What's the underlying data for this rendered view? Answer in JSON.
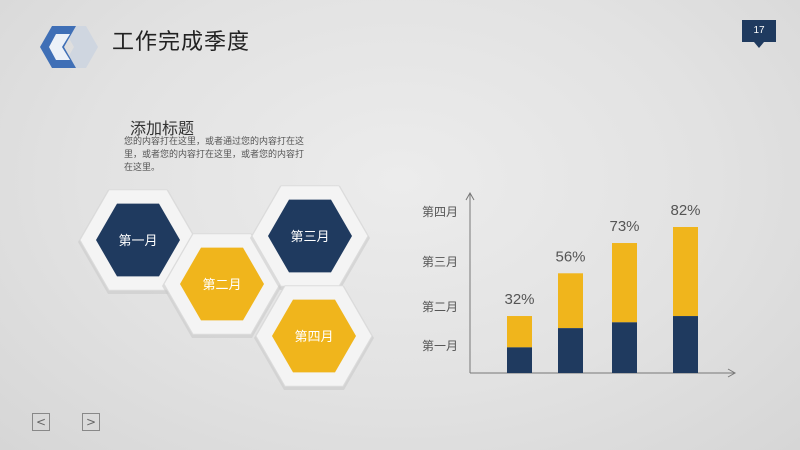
{
  "header": {
    "title": "工作完成季度",
    "page_number": "17"
  },
  "content": {
    "subtitle": "添加标题",
    "description": "您的内容打在这里，或者通过您的内容打在这里，或者您的内容打在这里，或者您的内容打在这里。"
  },
  "hexagons": [
    {
      "label": "第一月",
      "fill": "#1f3a5f"
    },
    {
      "label": "第二月",
      "fill": "#f0b51c"
    },
    {
      "label": "第三月",
      "fill": "#1f3a5f"
    },
    {
      "label": "第四月",
      "fill": "#f0b51c"
    }
  ],
  "chart_data": {
    "type": "bar",
    "y_category_labels": [
      "第一月",
      "第二月",
      "第三月",
      "第四月"
    ],
    "values": [
      32,
      56,
      73,
      82
    ],
    "data_labels": [
      "32%",
      "56%",
      "73%",
      "82%"
    ],
    "colors": {
      "top": "#f0b51c",
      "bottom": "#1f3a5f"
    }
  },
  "nav": {
    "prev": "<",
    "next": ">"
  }
}
